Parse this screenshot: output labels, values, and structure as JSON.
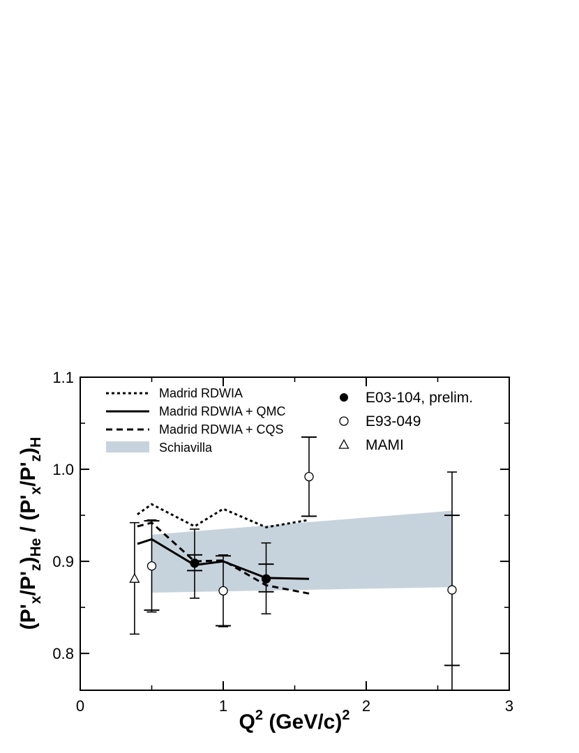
{
  "chart_data": {
    "type": "scatter",
    "xlim": [
      0,
      3
    ],
    "ylim": [
      0.76,
      1.1
    ],
    "x_ticks": [
      0,
      1,
      2,
      3
    ],
    "x_tick_labels": [
      "0",
      "1",
      "2",
      "3"
    ],
    "y_ticks": [
      0.8,
      0.9,
      1.0,
      1.1
    ],
    "y_tick_labels": [
      "0.8",
      "0.9",
      "1.0",
      "1.1"
    ],
    "xlabel": {
      "base": "Q",
      "sup": "2",
      "rest": " (GeV/c)",
      "sup2": "2"
    },
    "ylabel": {
      "parts": [
        {
          "t": "(P'",
          "s": ""
        },
        {
          "t": "x",
          "s": "sub"
        },
        {
          "t": "/P'",
          "s": ""
        },
        {
          "t": "z",
          "s": "sub"
        },
        {
          "t": ")",
          "s": ""
        },
        {
          "t": "He",
          "s": "sub"
        },
        {
          "t": " / (P'",
          "s": ""
        },
        {
          "t": "x",
          "s": "sub"
        },
        {
          "t": "/P'",
          "s": ""
        },
        {
          "t": "z",
          "s": "sub"
        },
        {
          "t": ")",
          "s": ""
        },
        {
          "t": "H",
          "s": "sub"
        }
      ]
    },
    "band": {
      "name": "Schiavilla",
      "color": "#c7d3dc",
      "x": [
        0.5,
        2.6
      ],
      "upper": [
        0.929,
        0.955
      ],
      "lower": [
        0.866,
        0.872
      ]
    },
    "lines": [
      {
        "name": "Madrid RDWIA",
        "style": "dotted",
        "x": [
          0.4,
          0.5,
          0.8,
          1.0,
          1.3,
          1.6
        ],
        "y": [
          0.951,
          0.962,
          0.938,
          0.957,
          0.937,
          0.945
        ]
      },
      {
        "name": "Madrid RDWIA + QMC",
        "style": "solid",
        "x": [
          0.4,
          0.5,
          0.8,
          1.0,
          1.3,
          1.6
        ],
        "y": [
          0.919,
          0.924,
          0.896,
          0.9,
          0.882,
          0.881
        ]
      },
      {
        "name": "Madrid RDWIA + CQS",
        "style": "dashed",
        "x": [
          0.4,
          0.5,
          0.8,
          1.0,
          1.3,
          1.6
        ],
        "y": [
          0.938,
          0.942,
          0.9,
          0.901,
          0.874,
          0.865
        ]
      }
    ],
    "series": [
      {
        "name": "E03-104, prelim.",
        "marker": "filled-circle",
        "points": [
          {
            "x": 0.8,
            "y": 0.898,
            "err_lo": 0.86,
            "err_hi": 0.935,
            "sys_lo": 0.89,
            "sys_hi": 0.907
          },
          {
            "x": 1.3,
            "y": 0.881,
            "err_lo": 0.843,
            "err_hi": 0.92,
            "sys_lo": 0.867,
            "sys_hi": 0.897
          }
        ]
      },
      {
        "name": "E93-049",
        "marker": "open-circle",
        "points": [
          {
            "x": 0.5,
            "y": 0.895,
            "err_lo": 0.845,
            "err_hi": 0.945,
            "sys_lo": 0.847,
            "sys_hi": 0.944
          },
          {
            "x": 1.0,
            "y": 0.868,
            "err_lo": 0.829,
            "err_hi": 0.907,
            "sys_lo": 0.83,
            "sys_hi": 0.906
          },
          {
            "x": 1.6,
            "y": 0.992,
            "err_lo": 0.949,
            "err_hi": 1.035,
            "sys_lo": 0.949,
            "sys_hi": 1.035
          },
          {
            "x": 2.6,
            "y": 0.869,
            "err_lo": 0.74,
            "err_hi": 0.997,
            "sys_lo": 0.787,
            "sys_hi": 0.95
          }
        ]
      },
      {
        "name": "MAMI",
        "marker": "open-triangle",
        "points": [
          {
            "x": 0.38,
            "y": 0.881,
            "err_lo": 0.821,
            "err_hi": 0.942,
            "sys_lo": null,
            "sys_hi": null
          }
        ]
      }
    ],
    "legend_left": [
      "Madrid RDWIA",
      "Madrid RDWIA + QMC",
      "Madrid RDWIA + CQS",
      "Schiavilla"
    ],
    "legend_right": [
      "E03-104, prelim.",
      "E93-049",
      "MAMI"
    ]
  }
}
